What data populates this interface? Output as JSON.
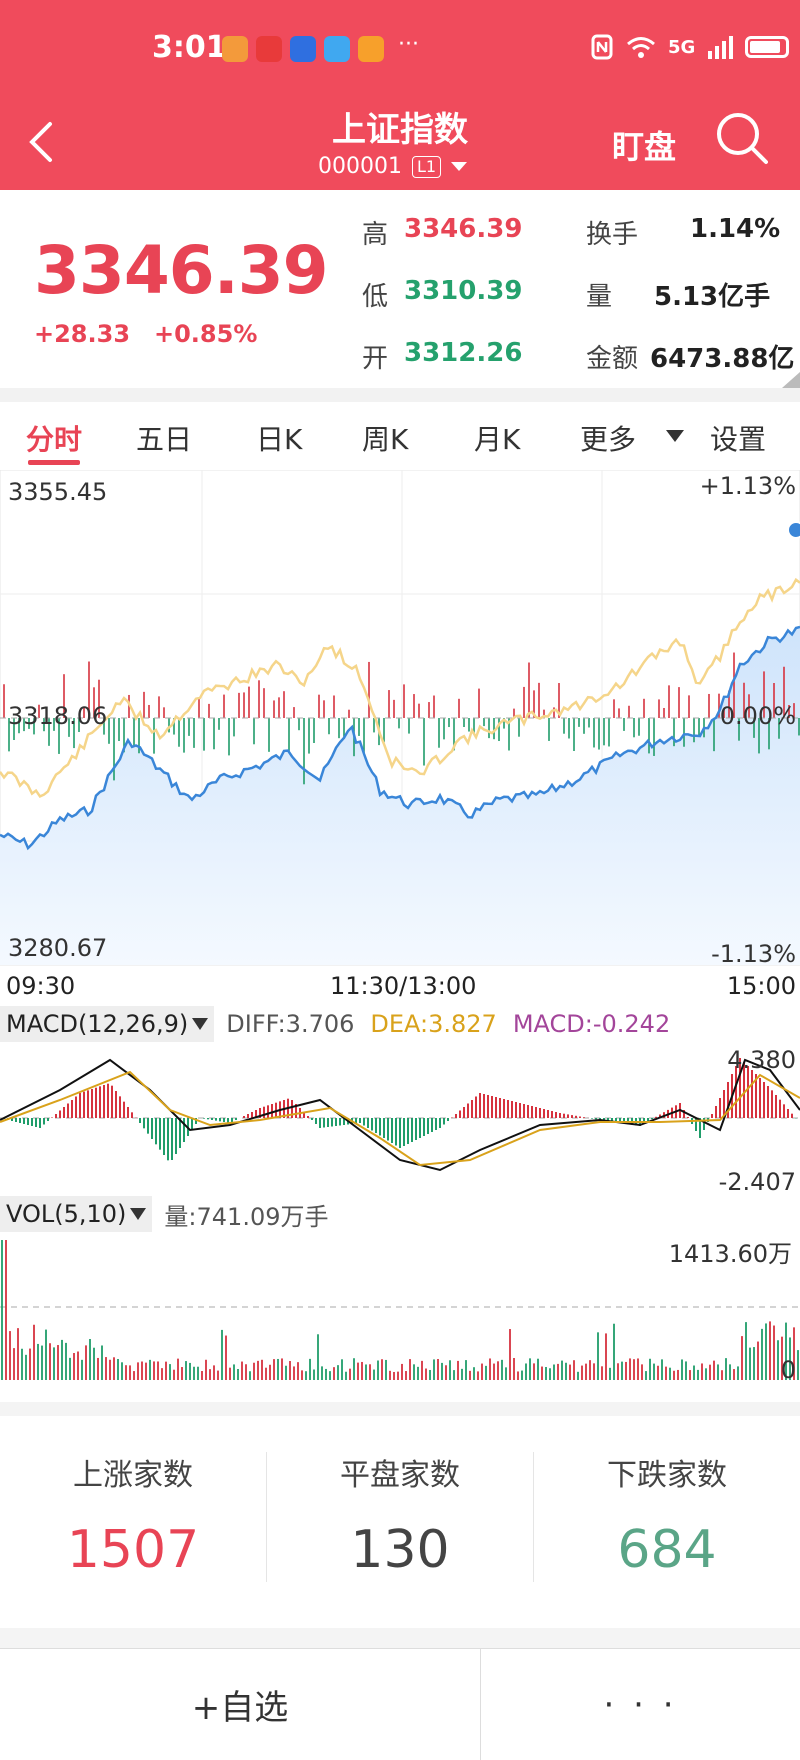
{
  "status_bar": {
    "time": "3:01",
    "more": "···",
    "network": "5G"
  },
  "header": {
    "title": "上证指数",
    "code": "000001",
    "level_badge": "L1",
    "watch_label": "盯盘"
  },
  "quote": {
    "price": "3346.39",
    "change": "+28.33",
    "change_pct": "+0.85%",
    "high_label": "高",
    "high": "3346.39",
    "low_label": "低",
    "low": "3310.39",
    "open_label": "开",
    "open": "3312.26",
    "turnover_label": "换手",
    "turnover": "1.14%",
    "volume_label": "量",
    "volume": "5.13亿手",
    "amount_label": "金额",
    "amount": "6473.88亿"
  },
  "tabs": [
    {
      "label": "分时",
      "active": true
    },
    {
      "label": "五日"
    },
    {
      "label": "日K"
    },
    {
      "label": "周K"
    },
    {
      "label": "月K"
    },
    {
      "label": "更多"
    },
    {
      "label": "设置"
    }
  ],
  "chart": {
    "y_max": "3355.45",
    "y_min": "3280.67",
    "y_mid": "3318.06",
    "pct_max": "+1.13%",
    "pct_mid": "0.00%",
    "pct_min": "-1.13%",
    "time_start": "09:30",
    "time_mid": "11:30/13:00",
    "time_end": "15:00",
    "colors": {
      "price_line": "#3a86d8",
      "avg_line": "#f5d58a",
      "up": "#d6323e",
      "down": "#1f9d6a"
    }
  },
  "macd": {
    "name": "MACD(12,26,9)",
    "diff": "DIFF:3.706",
    "dea": "DEA:3.827",
    "macd": "MACD:-0.242",
    "max": "4.380",
    "min": "-2.407"
  },
  "vol": {
    "name": "VOL(5,10)",
    "amount": "量:741.09万手",
    "max": "1413.60万",
    "min": "0"
  },
  "stats": {
    "up_title": "上涨家数",
    "up": "1507",
    "flat_title": "平盘家数",
    "flat": "130",
    "down_title": "下跌家数",
    "down": "684"
  },
  "bottom": {
    "add_watchlist": "+自选",
    "more": "· · ·"
  }
}
